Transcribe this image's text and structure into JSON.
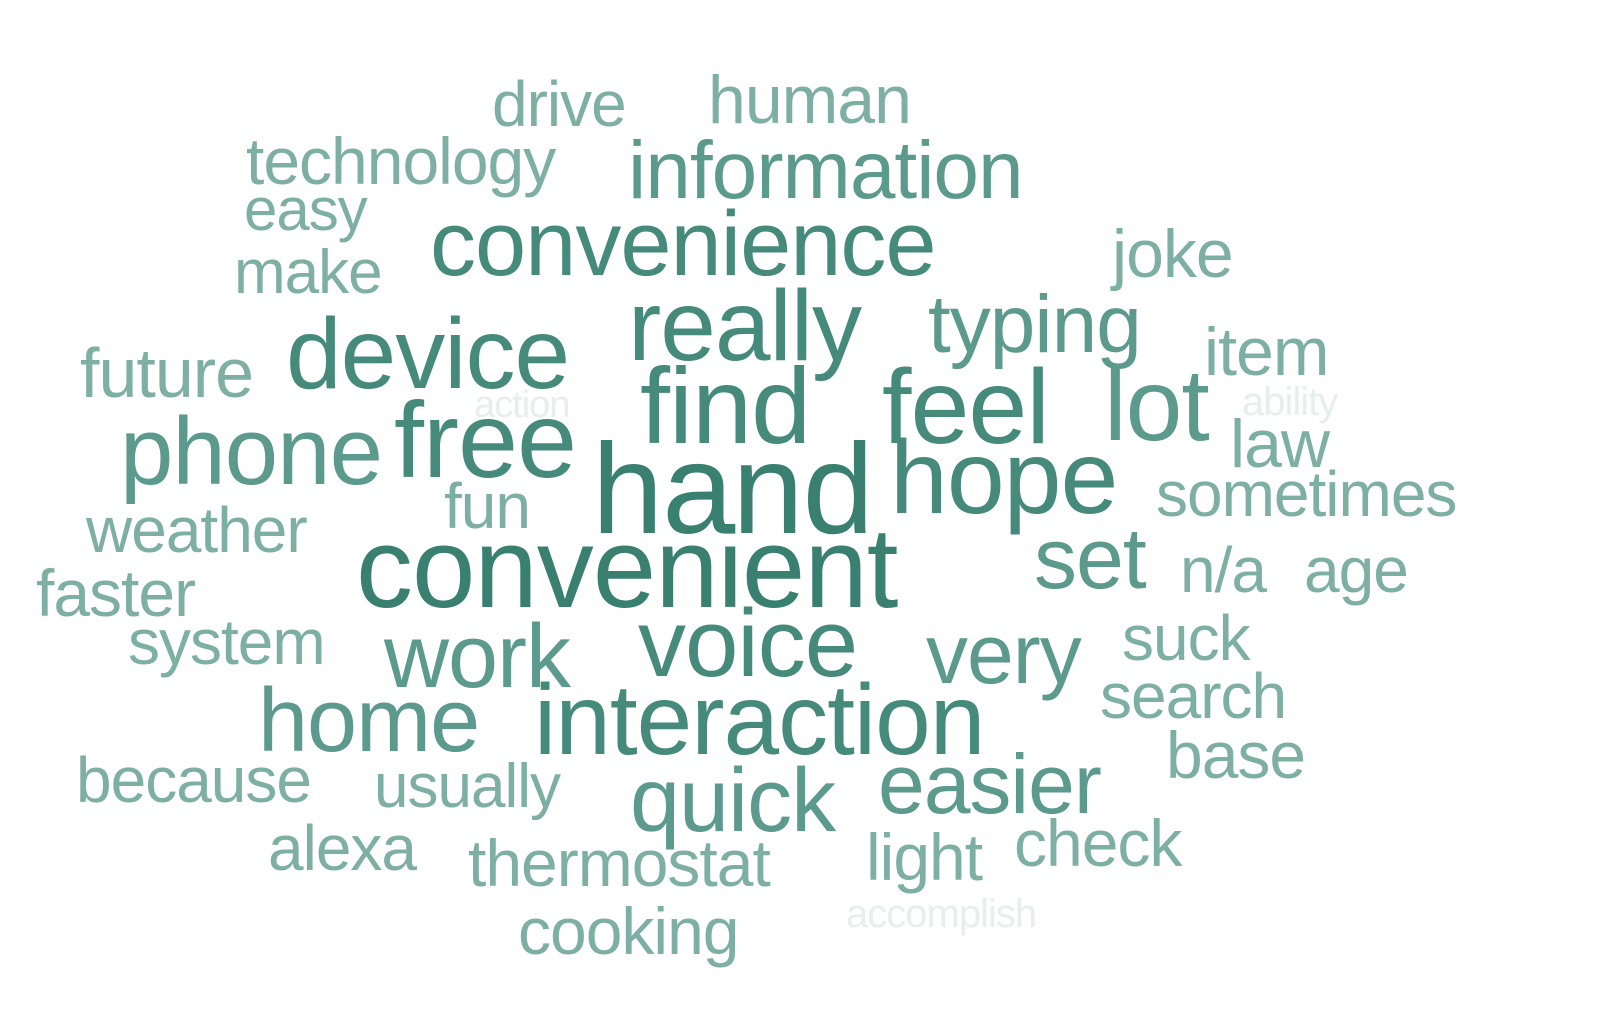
{
  "colors": {
    "background": "#ffffff",
    "darkest": "#3a8070",
    "dark": "#468a7c",
    "medium": "#5c9a8d",
    "light": "#7eafa4",
    "lighter": "#8fb8ae",
    "faint": "#e6efec"
  },
  "words": [
    {
      "text": "drive",
      "tone": "light"
    },
    {
      "text": "human",
      "tone": "light"
    },
    {
      "text": "technology",
      "tone": "light"
    },
    {
      "text": "information",
      "tone": "medium"
    },
    {
      "text": "easy",
      "tone": "light"
    },
    {
      "text": "convenience",
      "tone": "dark"
    },
    {
      "text": "joke",
      "tone": "light"
    },
    {
      "text": "make",
      "tone": "light"
    },
    {
      "text": "really",
      "tone": "dark"
    },
    {
      "text": "typing",
      "tone": "medium"
    },
    {
      "text": "device",
      "tone": "dark"
    },
    {
      "text": "item",
      "tone": "light"
    },
    {
      "text": "future",
      "tone": "light"
    },
    {
      "text": "find",
      "tone": "dark"
    },
    {
      "text": "feel",
      "tone": "dark"
    },
    {
      "text": "lot",
      "tone": "medium"
    },
    {
      "text": "action",
      "tone": "faint"
    },
    {
      "text": "ability",
      "tone": "faint"
    },
    {
      "text": "phone",
      "tone": "medium"
    },
    {
      "text": "free",
      "tone": "dark"
    },
    {
      "text": "hand",
      "tone": "darkest"
    },
    {
      "text": "hope",
      "tone": "dark"
    },
    {
      "text": "law",
      "tone": "light"
    },
    {
      "text": "fun",
      "tone": "light"
    },
    {
      "text": "sometimes",
      "tone": "light"
    },
    {
      "text": "weather",
      "tone": "light"
    },
    {
      "text": "convenient",
      "tone": "darkest"
    },
    {
      "text": "set",
      "tone": "medium"
    },
    {
      "text": "n/a",
      "tone": "light"
    },
    {
      "text": "age",
      "tone": "light"
    },
    {
      "text": "faster",
      "tone": "light"
    },
    {
      "text": "system",
      "tone": "light"
    },
    {
      "text": "work",
      "tone": "medium"
    },
    {
      "text": "voice",
      "tone": "dark"
    },
    {
      "text": "very",
      "tone": "medium"
    },
    {
      "text": "suck",
      "tone": "light"
    },
    {
      "text": "search",
      "tone": "light"
    },
    {
      "text": "home",
      "tone": "medium"
    },
    {
      "text": "interaction",
      "tone": "dark"
    },
    {
      "text": "base",
      "tone": "light"
    },
    {
      "text": "because",
      "tone": "light"
    },
    {
      "text": "usually",
      "tone": "light"
    },
    {
      "text": "quick",
      "tone": "medium"
    },
    {
      "text": "easier",
      "tone": "medium"
    },
    {
      "text": "alexa",
      "tone": "light"
    },
    {
      "text": "thermostat",
      "tone": "light"
    },
    {
      "text": "light",
      "tone": "light"
    },
    {
      "text": "check",
      "tone": "light"
    },
    {
      "text": "accomplish",
      "tone": "faint"
    },
    {
      "text": "cooking",
      "tone": "light"
    }
  ]
}
